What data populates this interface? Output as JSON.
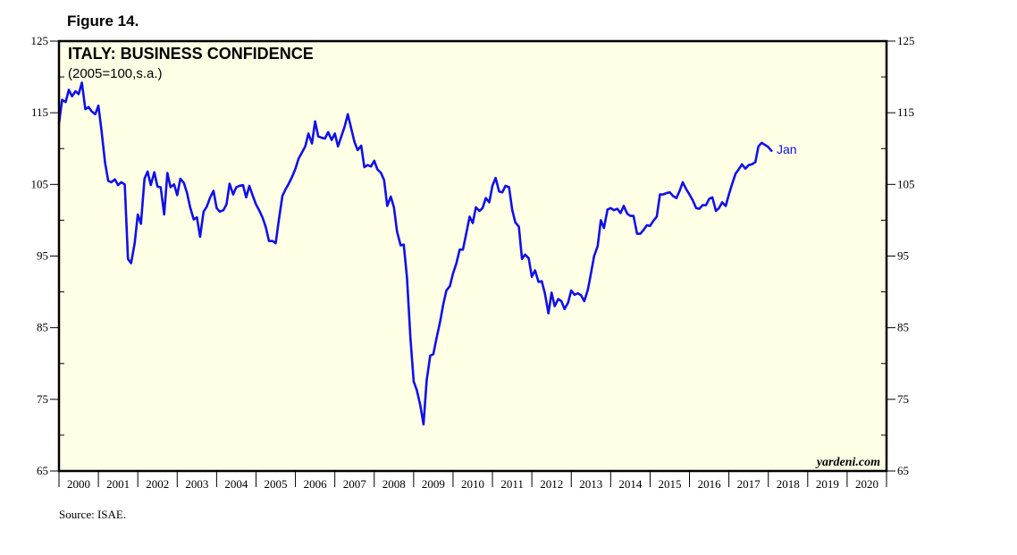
{
  "figure_label": "Figure 14.",
  "source": "Source:  ISAE.",
  "chart_data": {
    "type": "line",
    "title": "ITALY: BUSINESS CONFIDENCE",
    "subtitle": "(2005=100,s.a.)",
    "watermark": "yardeni.com",
    "end_label": "Jan",
    "ylim": [
      65,
      125
    ],
    "y_ticks": [
      "65",
      "75",
      "85",
      "95",
      "105",
      "115",
      "125"
    ],
    "xlim": [
      2000,
      2021
    ],
    "x_tick_labels": [
      "2000",
      "2001",
      "2002",
      "2003",
      "2004",
      "2005",
      "2006",
      "2007",
      "2008",
      "2009",
      "2010",
      "2011",
      "2012",
      "2013",
      "2014",
      "2015",
      "2016",
      "2017",
      "2018",
      "2019",
      "2020"
    ],
    "grid": false,
    "line_color": "#1010e8",
    "series": [
      {
        "points": [
          [
            2000.0,
            113.5
          ],
          [
            2000.08,
            116.8
          ],
          [
            2000.17,
            116.5
          ],
          [
            2000.25,
            118.2
          ],
          [
            2000.33,
            117.3
          ],
          [
            2000.42,
            118.0
          ],
          [
            2000.5,
            117.6
          ],
          [
            2000.58,
            119.2
          ],
          [
            2000.67,
            115.5
          ],
          [
            2000.75,
            115.8
          ],
          [
            2000.83,
            115.2
          ],
          [
            2000.92,
            114.8
          ],
          [
            2001.0,
            116.0
          ],
          [
            2001.08,
            112.5
          ],
          [
            2001.17,
            108.0
          ],
          [
            2001.25,
            105.5
          ],
          [
            2001.33,
            105.3
          ],
          [
            2001.42,
            105.7
          ],
          [
            2001.5,
            104.9
          ],
          [
            2001.58,
            105.3
          ],
          [
            2001.67,
            105.0
          ],
          [
            2001.75,
            94.6
          ],
          [
            2001.83,
            94.0
          ],
          [
            2001.92,
            96.8
          ],
          [
            2002.0,
            100.8
          ],
          [
            2002.08,
            99.5
          ],
          [
            2002.17,
            105.8
          ],
          [
            2002.25,
            106.8
          ],
          [
            2002.33,
            104.9
          ],
          [
            2002.42,
            106.7
          ],
          [
            2002.5,
            104.7
          ],
          [
            2002.58,
            104.6
          ],
          [
            2002.67,
            100.8
          ],
          [
            2002.75,
            106.6
          ],
          [
            2002.83,
            104.6
          ],
          [
            2002.92,
            105.0
          ],
          [
            2003.0,
            103.5
          ],
          [
            2003.08,
            105.8
          ],
          [
            2003.17,
            105.2
          ],
          [
            2003.25,
            103.8
          ],
          [
            2003.33,
            101.8
          ],
          [
            2003.42,
            100.1
          ],
          [
            2003.5,
            100.4
          ],
          [
            2003.58,
            97.7
          ],
          [
            2003.67,
            101.2
          ],
          [
            2003.75,
            101.9
          ],
          [
            2003.83,
            103.1
          ],
          [
            2003.92,
            104.1
          ],
          [
            2004.0,
            101.7
          ],
          [
            2004.08,
            101.2
          ],
          [
            2004.17,
            101.4
          ],
          [
            2004.25,
            102.2
          ],
          [
            2004.33,
            105.1
          ],
          [
            2004.42,
            103.6
          ],
          [
            2004.5,
            104.6
          ],
          [
            2004.58,
            104.8
          ],
          [
            2004.67,
            104.9
          ],
          [
            2004.75,
            103.2
          ],
          [
            2004.83,
            104.8
          ],
          [
            2004.92,
            103.4
          ],
          [
            2005.0,
            102.2
          ],
          [
            2005.08,
            101.4
          ],
          [
            2005.17,
            100.3
          ],
          [
            2005.25,
            99.0
          ],
          [
            2005.33,
            97.1
          ],
          [
            2005.42,
            97.1
          ],
          [
            2005.5,
            96.8
          ],
          [
            2005.58,
            100.1
          ],
          [
            2005.67,
            103.4
          ],
          [
            2005.75,
            104.3
          ],
          [
            2005.83,
            105.1
          ],
          [
            2005.92,
            106.1
          ],
          [
            2006.0,
            107.2
          ],
          [
            2006.08,
            108.6
          ],
          [
            2006.17,
            109.5
          ],
          [
            2006.25,
            110.3
          ],
          [
            2006.33,
            112.1
          ],
          [
            2006.42,
            110.7
          ],
          [
            2006.5,
            113.8
          ],
          [
            2006.58,
            111.7
          ],
          [
            2006.67,
            111.5
          ],
          [
            2006.75,
            111.4
          ],
          [
            2006.83,
            112.3
          ],
          [
            2006.92,
            111.2
          ],
          [
            2007.0,
            112.1
          ],
          [
            2007.08,
            110.3
          ],
          [
            2007.17,
            111.8
          ],
          [
            2007.25,
            113.1
          ],
          [
            2007.33,
            114.8
          ],
          [
            2007.42,
            112.7
          ],
          [
            2007.5,
            110.9
          ],
          [
            2007.58,
            109.8
          ],
          [
            2007.67,
            110.4
          ],
          [
            2007.75,
            107.4
          ],
          [
            2007.83,
            107.7
          ],
          [
            2007.92,
            107.5
          ],
          [
            2008.0,
            108.3
          ],
          [
            2008.08,
            107.1
          ],
          [
            2008.17,
            106.6
          ],
          [
            2008.25,
            105.6
          ],
          [
            2008.33,
            102.0
          ],
          [
            2008.42,
            103.3
          ],
          [
            2008.5,
            101.8
          ],
          [
            2008.58,
            98.4
          ],
          [
            2008.67,
            96.5
          ],
          [
            2008.75,
            96.6
          ],
          [
            2008.83,
            92.0
          ],
          [
            2008.92,
            83.5
          ],
          [
            2009.0,
            77.5
          ],
          [
            2009.08,
            76.3
          ],
          [
            2009.17,
            74.1
          ],
          [
            2009.25,
            71.5
          ],
          [
            2009.33,
            77.6
          ],
          [
            2009.42,
            81.1
          ],
          [
            2009.5,
            81.3
          ],
          [
            2009.58,
            83.5
          ],
          [
            2009.67,
            85.8
          ],
          [
            2009.75,
            88.2
          ],
          [
            2009.83,
            90.2
          ],
          [
            2009.92,
            90.8
          ],
          [
            2010.0,
            92.6
          ],
          [
            2010.08,
            93.9
          ],
          [
            2010.17,
            95.9
          ],
          [
            2010.25,
            95.9
          ],
          [
            2010.33,
            98.0
          ],
          [
            2010.42,
            100.5
          ],
          [
            2010.5,
            99.6
          ],
          [
            2010.58,
            101.8
          ],
          [
            2010.67,
            101.3
          ],
          [
            2010.75,
            101.7
          ],
          [
            2010.83,
            103.1
          ],
          [
            2010.92,
            102.5
          ],
          [
            2011.0,
            104.8
          ],
          [
            2011.08,
            105.9
          ],
          [
            2011.17,
            104.0
          ],
          [
            2011.25,
            103.9
          ],
          [
            2011.33,
            104.8
          ],
          [
            2011.42,
            104.6
          ],
          [
            2011.5,
            101.5
          ],
          [
            2011.58,
            99.7
          ],
          [
            2011.67,
            99.1
          ],
          [
            2011.75,
            94.6
          ],
          [
            2011.83,
            95.2
          ],
          [
            2011.92,
            94.7
          ],
          [
            2012.0,
            92.1
          ],
          [
            2012.08,
            93.0
          ],
          [
            2012.17,
            91.4
          ],
          [
            2012.25,
            91.5
          ],
          [
            2012.33,
            89.8
          ],
          [
            2012.42,
            87.0
          ],
          [
            2012.5,
            89.9
          ],
          [
            2012.58,
            88.0
          ],
          [
            2012.67,
            89.0
          ],
          [
            2012.75,
            88.7
          ],
          [
            2012.83,
            87.6
          ],
          [
            2012.92,
            88.5
          ],
          [
            2013.0,
            90.2
          ],
          [
            2013.08,
            89.6
          ],
          [
            2013.17,
            89.8
          ],
          [
            2013.25,
            89.5
          ],
          [
            2013.33,
            88.7
          ],
          [
            2013.42,
            90.3
          ],
          [
            2013.5,
            92.6
          ],
          [
            2013.58,
            95.0
          ],
          [
            2013.67,
            96.4
          ],
          [
            2013.75,
            100.0
          ],
          [
            2013.83,
            98.9
          ],
          [
            2013.92,
            101.5
          ],
          [
            2014.0,
            101.7
          ],
          [
            2014.08,
            101.4
          ],
          [
            2014.17,
            101.6
          ],
          [
            2014.25,
            101.0
          ],
          [
            2014.33,
            102.0
          ],
          [
            2014.42,
            100.9
          ],
          [
            2014.5,
            100.6
          ],
          [
            2014.58,
            100.6
          ],
          [
            2014.67,
            98.1
          ],
          [
            2014.75,
            98.1
          ],
          [
            2014.83,
            98.6
          ],
          [
            2014.92,
            99.3
          ],
          [
            2015.0,
            99.2
          ],
          [
            2015.08,
            99.9
          ],
          [
            2015.17,
            100.5
          ],
          [
            2015.25,
            103.6
          ],
          [
            2015.33,
            103.6
          ],
          [
            2015.42,
            103.8
          ],
          [
            2015.5,
            103.9
          ],
          [
            2015.58,
            103.4
          ],
          [
            2015.67,
            103.1
          ],
          [
            2015.75,
            104.1
          ],
          [
            2015.83,
            105.3
          ],
          [
            2015.92,
            104.3
          ],
          [
            2016.0,
            103.6
          ],
          [
            2016.08,
            102.8
          ],
          [
            2016.17,
            101.7
          ],
          [
            2016.25,
            101.6
          ],
          [
            2016.33,
            102.1
          ],
          [
            2016.42,
            102.1
          ],
          [
            2016.5,
            103.0
          ],
          [
            2016.58,
            103.2
          ],
          [
            2016.67,
            101.3
          ],
          [
            2016.75,
            101.7
          ],
          [
            2016.83,
            102.5
          ],
          [
            2016.92,
            102.0
          ],
          [
            2017.0,
            103.6
          ],
          [
            2017.08,
            105.0
          ],
          [
            2017.17,
            106.5
          ],
          [
            2017.25,
            107.1
          ],
          [
            2017.33,
            107.8
          ],
          [
            2017.42,
            107.2
          ],
          [
            2017.5,
            107.7
          ],
          [
            2017.58,
            107.8
          ],
          [
            2017.67,
            108.1
          ],
          [
            2017.75,
            110.3
          ],
          [
            2017.83,
            110.8
          ],
          [
            2017.92,
            110.5
          ],
          [
            2018.0,
            110.2
          ],
          [
            2018.08,
            109.7
          ]
        ]
      }
    ]
  }
}
